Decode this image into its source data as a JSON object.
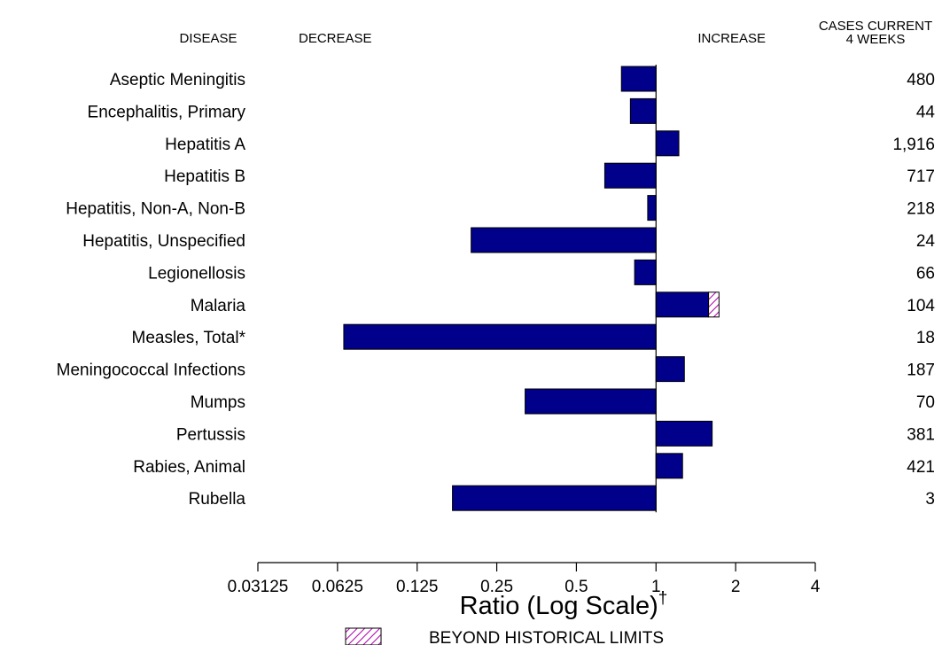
{
  "headers": {
    "disease": "DISEASE",
    "decrease": "DECREASE",
    "increase": "INCREASE",
    "cases_line1": "CASES CURRENT",
    "cases_line2": "4 WEEKS"
  },
  "legend": {
    "label": "BEYOND HISTORICAL LIMITS"
  },
  "colors": {
    "bar": "#00008b",
    "beyond_limits_hatch": "#b000b0"
  },
  "chart_data": {
    "type": "bar",
    "orientation": "horizontal",
    "xscale": "log2",
    "xlabel": "Ratio (Log Scale)",
    "xlabel_superscript": "†",
    "xlim": [
      0.03125,
      4
    ],
    "baseline": 1,
    "xticks": [
      {
        "value": 0.03125,
        "label": "0.03125"
      },
      {
        "value": 0.0625,
        "label": "0.0625"
      },
      {
        "value": 0.125,
        "label": "0.125"
      },
      {
        "value": 0.25,
        "label": "0.25"
      },
      {
        "value": 0.5,
        "label": "0.5"
      },
      {
        "value": 1,
        "label": "1"
      },
      {
        "value": 2,
        "label": "2"
      },
      {
        "value": 4,
        "label": "4"
      }
    ],
    "rows": [
      {
        "disease": "Aseptic Meningitis",
        "ratio": 0.74,
        "cases": "480"
      },
      {
        "disease": "Encephalitis, Primary",
        "ratio": 0.8,
        "cases": "44"
      },
      {
        "disease": "Hepatitis A",
        "ratio": 1.22,
        "cases": "1,916"
      },
      {
        "disease": "Hepatitis B",
        "ratio": 0.64,
        "cases": "717"
      },
      {
        "disease": "Hepatitis, Non-A, Non-B",
        "ratio": 0.93,
        "cases": "218"
      },
      {
        "disease": "Hepatitis, Unspecified",
        "ratio": 0.2,
        "cases": "24"
      },
      {
        "disease": "Legionellosis",
        "ratio": 0.83,
        "cases": "66"
      },
      {
        "disease": "Malaria",
        "ratio": 1.73,
        "beyond_historical_limits_from": 1.58,
        "cases": "104"
      },
      {
        "disease": "Measles, Total*",
        "ratio": 0.066,
        "cases": "18"
      },
      {
        "disease": "Meningococcal Infections",
        "ratio": 1.28,
        "cases": "187"
      },
      {
        "disease": "Mumps",
        "ratio": 0.32,
        "cases": "70"
      },
      {
        "disease": "Pertussis",
        "ratio": 1.63,
        "cases": "381"
      },
      {
        "disease": "Rabies, Animal",
        "ratio": 1.26,
        "cases": "421"
      },
      {
        "disease": "Rubella",
        "ratio": 0.17,
        "cases": "3"
      }
    ]
  }
}
